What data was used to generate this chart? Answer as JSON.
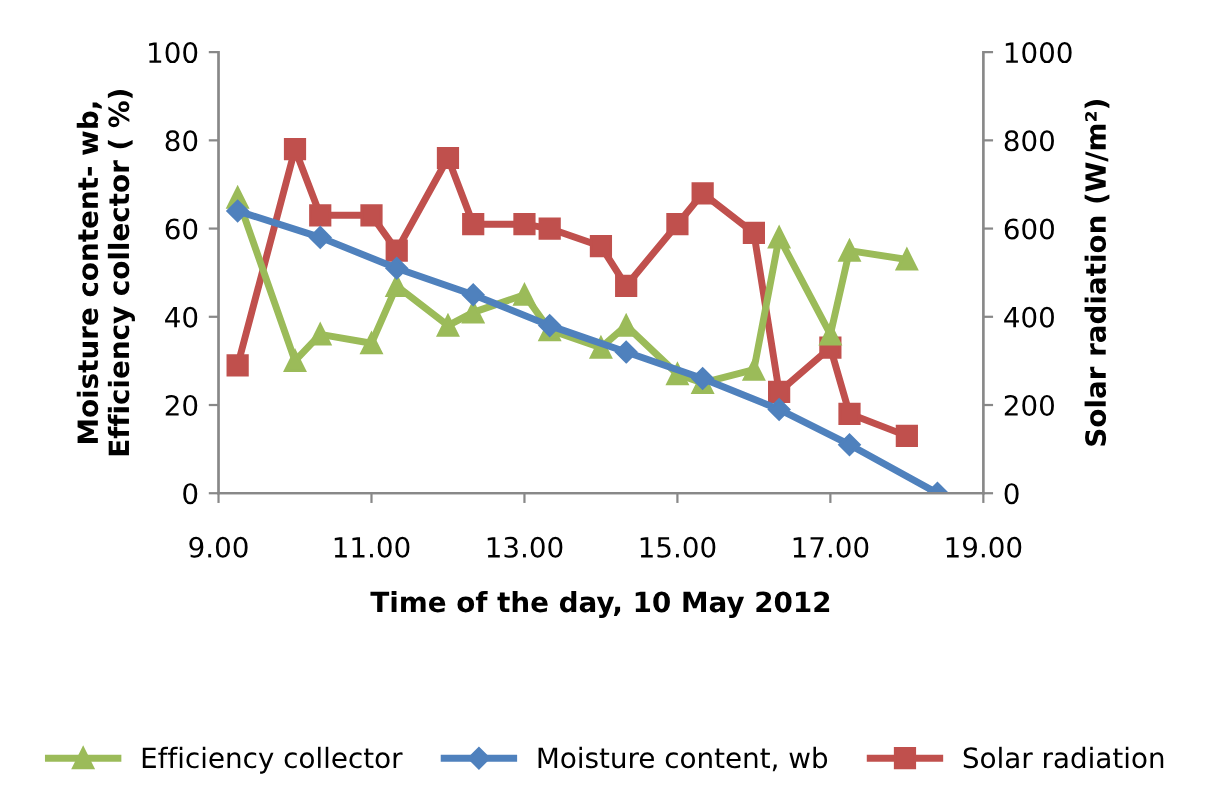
{
  "chart_data": {
    "type": "line",
    "xlabel": "Time of the day, 10 May 2012",
    "ylabel": "Moisture content- wb,\nEfficiency collector ( %)",
    "y2label": "Solar radiation (W/m²)",
    "xlim": [
      9,
      19
    ],
    "xticks": [
      {
        "value": 9,
        "label": "9.00"
      },
      {
        "value": 11,
        "label": "11.00"
      },
      {
        "value": 13,
        "label": "13.00"
      },
      {
        "value": 15,
        "label": "15.00"
      },
      {
        "value": 17,
        "label": "17.00"
      },
      {
        "value": 19,
        "label": "19.00"
      }
    ],
    "ylim": [
      0,
      100
    ],
    "yticks": [
      0,
      20,
      40,
      60,
      80,
      100
    ],
    "y2lim": [
      0,
      1000
    ],
    "y2ticks": [
      0,
      200,
      400,
      600,
      800,
      1000
    ],
    "grid": false,
    "legend": "bottom",
    "line_style": "solid",
    "series": [
      {
        "name": "Efficiency collector",
        "color": "#9bbb59",
        "marker": "triangle",
        "x": [
          9.25,
          10,
          10.33,
          11,
          11.33,
          12,
          12.33,
          13,
          13.33,
          14,
          14.33,
          15,
          15.33,
          16,
          16.33,
          17,
          17.25,
          18
        ],
        "values": [
          67,
          30,
          36,
          34,
          47,
          38,
          41,
          45,
          37,
          33,
          38,
          27,
          25,
          28,
          58,
          36,
          55,
          53
        ]
      },
      {
        "name": "Moisture content, wb",
        "color": "#4f81bd",
        "marker": "diamond",
        "x": [
          9.25,
          10.33,
          11.33,
          12.33,
          13.33,
          14.33,
          15.33,
          16.33,
          17.25,
          18.4
        ],
        "values": [
          64,
          58,
          51,
          45,
          38,
          32,
          26,
          19,
          11,
          0
        ]
      },
      {
        "name": "Solar radiation",
        "color": "#c0504d",
        "marker": "square",
        "axis": "y2",
        "x": [
          9.25,
          10,
          10.33,
          11,
          11.33,
          12,
          12.33,
          13,
          13.33,
          14,
          14.33,
          15,
          15.33,
          16,
          16.33,
          17,
          17.25,
          18
        ],
        "values": [
          290,
          780,
          630,
          630,
          550,
          760,
          610,
          610,
          600,
          560,
          470,
          610,
          680,
          590,
          230,
          330,
          180,
          130
        ]
      }
    ]
  }
}
